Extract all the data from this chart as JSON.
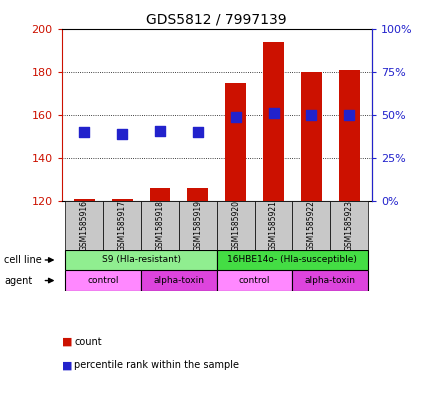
{
  "title": "GDS5812 / 7997139",
  "samples": [
    "GSM1585916",
    "GSM1585917",
    "GSM1585918",
    "GSM1585919",
    "GSM1585920",
    "GSM1585921",
    "GSM1585922",
    "GSM1585923"
  ],
  "counts": [
    121,
    121,
    126,
    126,
    175,
    194,
    180,
    181
  ],
  "percentile_ranks": [
    40,
    39,
    41,
    40,
    49,
    51,
    50,
    50
  ],
  "ylim_left": [
    120,
    200
  ],
  "ylim_right": [
    0,
    100
  ],
  "yticks_left": [
    120,
    140,
    160,
    180,
    200
  ],
  "yticks_right": [
    0,
    25,
    50,
    75,
    100
  ],
  "ytick_labels_right": [
    "0%",
    "25%",
    "50%",
    "75%",
    "100%"
  ],
  "cell_line_groups": [
    {
      "label": "S9 (Hla-resistant)",
      "start": 0,
      "end": 3,
      "color": "#90EE90"
    },
    {
      "label": "16HBE14o- (Hla-susceptible)",
      "start": 4,
      "end": 7,
      "color": "#44DD44"
    }
  ],
  "agent_groups": [
    {
      "label": "control",
      "start": 0,
      "end": 1,
      "color": "#FF88FF"
    },
    {
      "label": "alpha-toxin",
      "start": 2,
      "end": 3,
      "color": "#DD44DD"
    },
    {
      "label": "control",
      "start": 4,
      "end": 5,
      "color": "#FF88FF"
    },
    {
      "label": "alpha-toxin",
      "start": 6,
      "end": 7,
      "color": "#DD44DD"
    }
  ],
  "bar_color": "#CC1100",
  "dot_color": "#2222CC",
  "bar_width": 0.55,
  "dot_size": 45,
  "background_color": "#ffffff",
  "grid_color": "#000000",
  "left_axis_color": "#CC1100",
  "right_axis_color": "#2222CC",
  "sample_box_color": "#C8C8C8"
}
